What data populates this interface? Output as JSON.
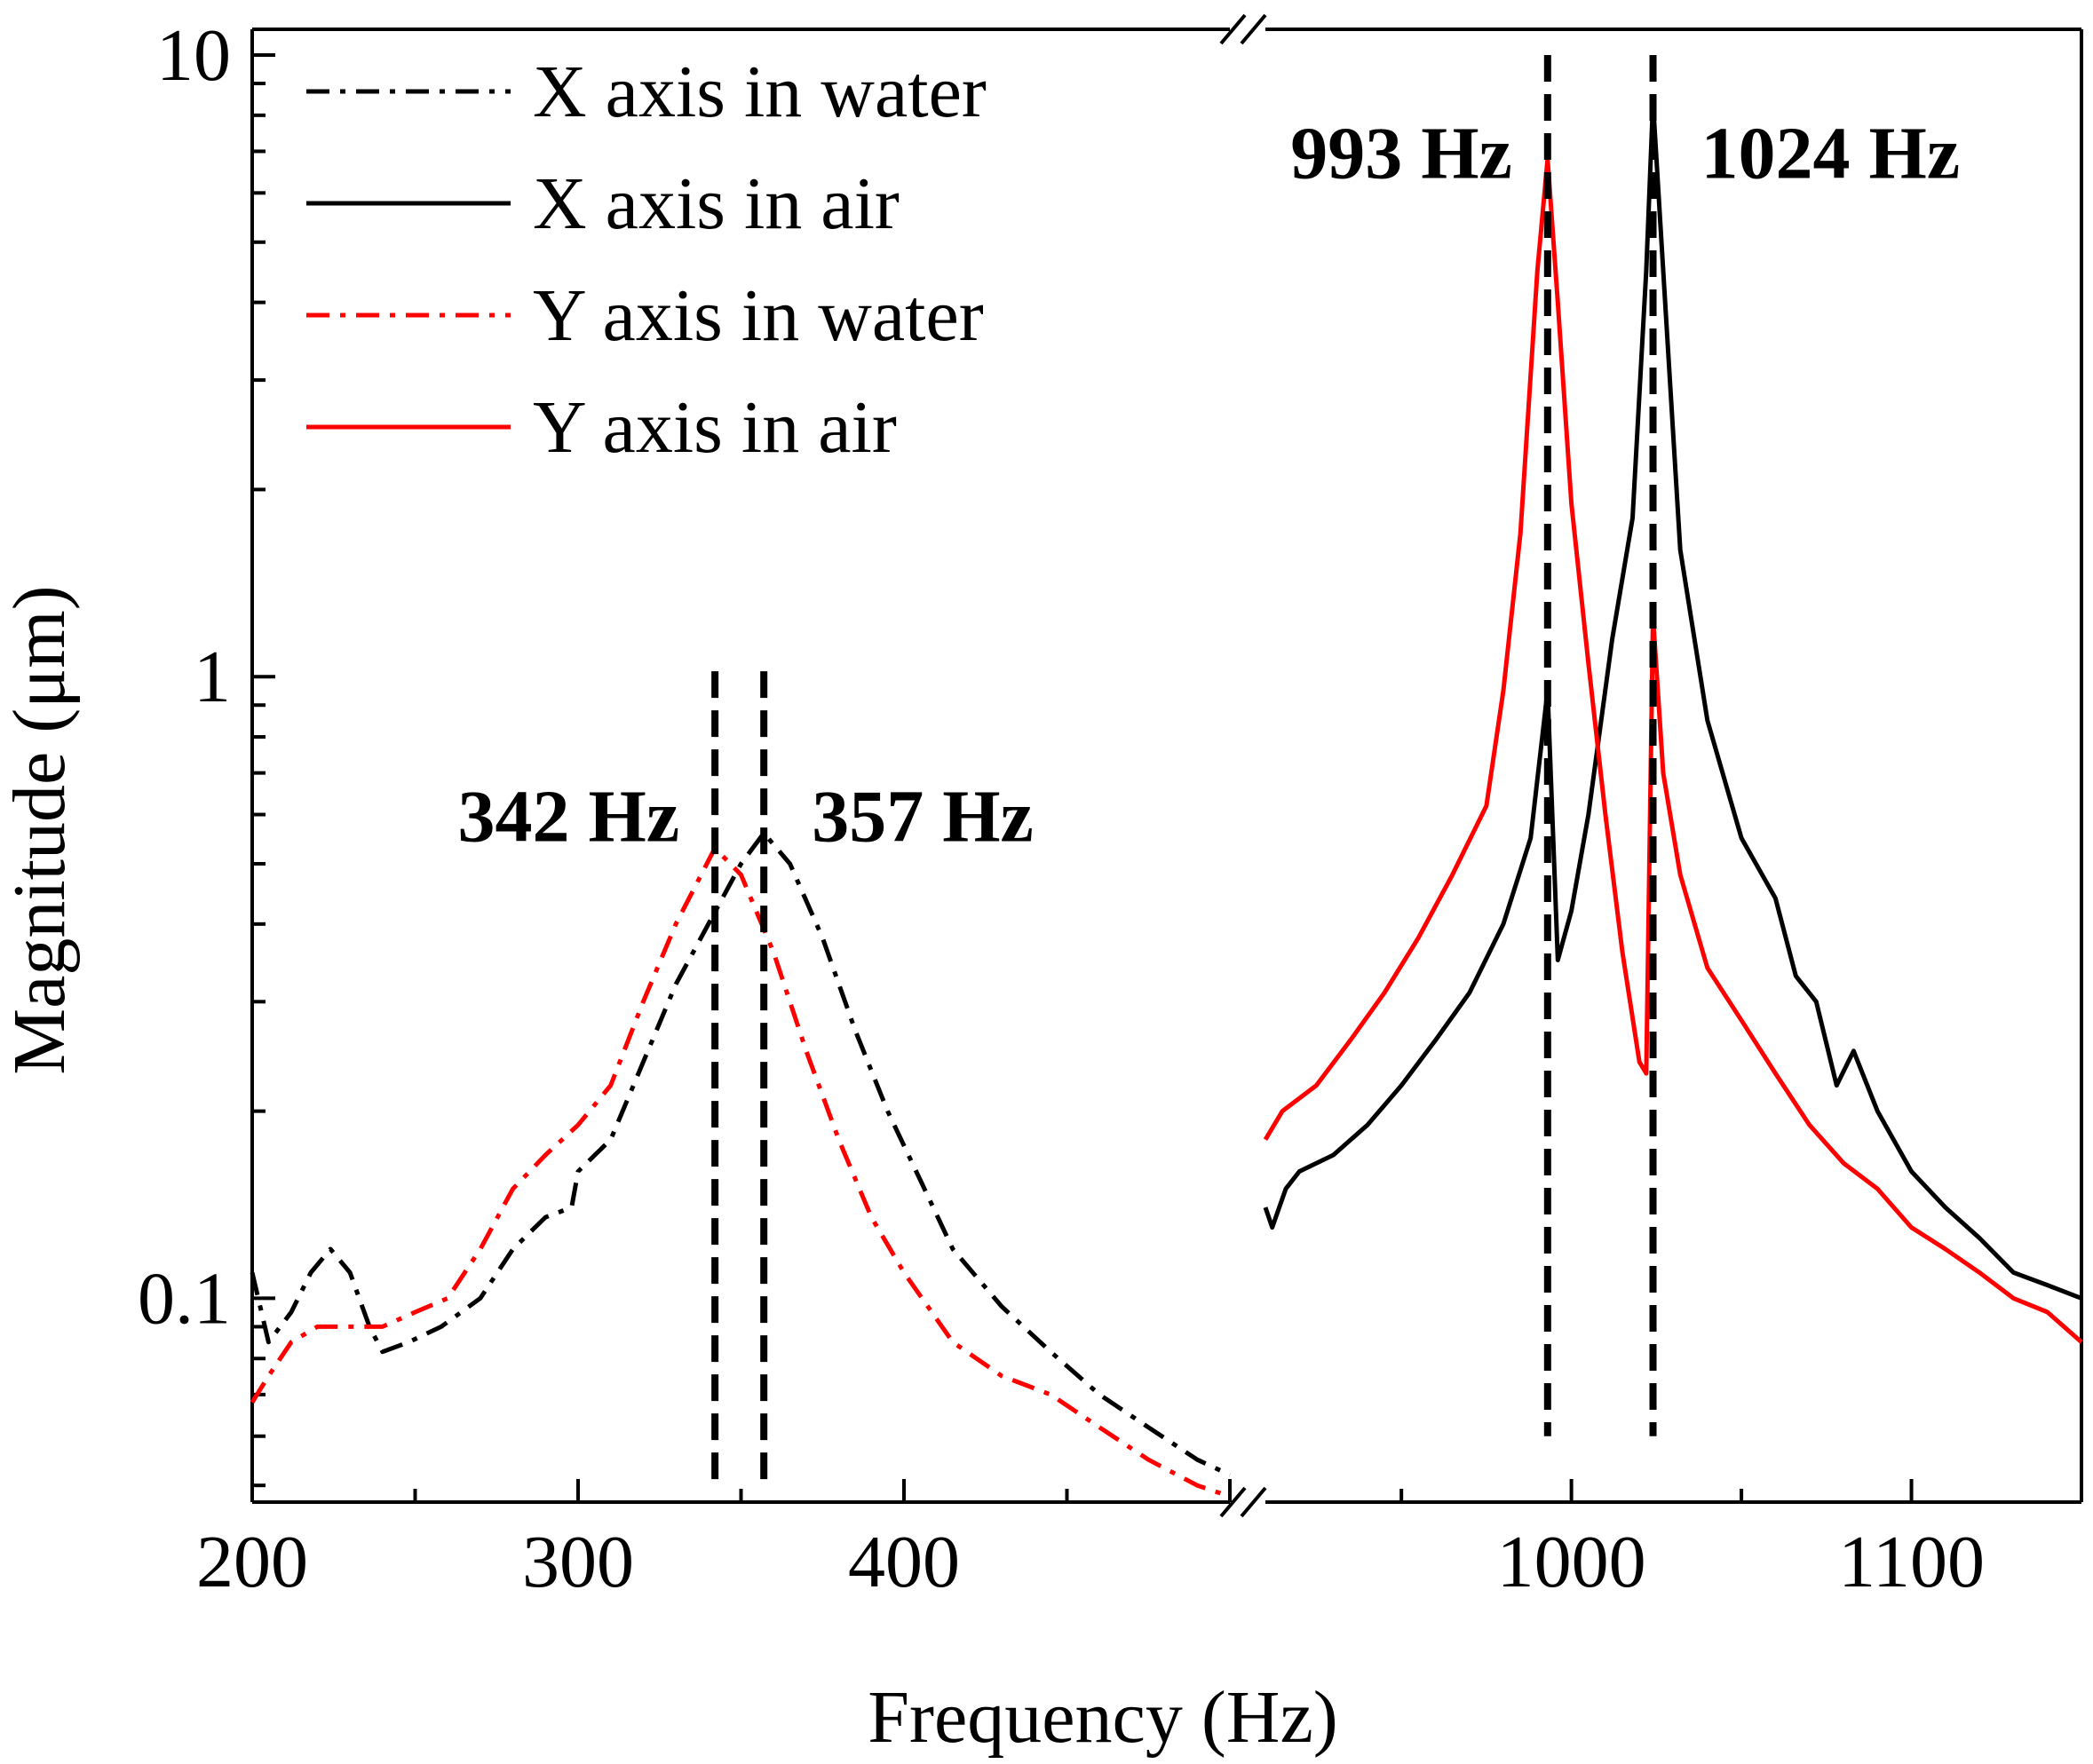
{
  "chart_data": {
    "type": "line",
    "title": "",
    "xlabel": "Frequency (Hz)",
    "ylabel": "Magnitude (μm)",
    "yscale": "log",
    "ylim": [
      0.047,
      11
    ],
    "grid": false,
    "legend_position": "top-left",
    "x_segments": [
      {
        "xlim": [
          200,
          500
        ],
        "ticks": [
          200,
          300,
          400
        ],
        "tick_labels": [
          "200",
          "300",
          "400"
        ]
      },
      {
        "xlim": [
          910,
          1150
        ],
        "ticks": [
          1000,
          1100
        ],
        "tick_labels": [
          "1000",
          "1100"
        ]
      }
    ],
    "y_ticks": [
      0.1,
      1,
      10
    ],
    "y_tick_labels": [
      "0.1",
      "1",
      "10"
    ],
    "series": [
      {
        "name": "X axis in water",
        "color": "#000000",
        "style": "dashdot",
        "segment": 0,
        "points": [
          [
            200,
            0.11
          ],
          [
            205,
            0.085
          ],
          [
            212,
            0.095
          ],
          [
            218,
            0.11
          ],
          [
            224,
            0.12
          ],
          [
            230,
            0.11
          ],
          [
            236,
            0.09
          ],
          [
            240,
            0.082
          ],
          [
            248,
            0.085
          ],
          [
            258,
            0.09
          ],
          [
            270,
            0.1
          ],
          [
            280,
            0.12
          ],
          [
            290,
            0.135
          ],
          [
            298,
            0.14
          ],
          [
            300,
            0.16
          ],
          [
            310,
            0.18
          ],
          [
            320,
            0.24
          ],
          [
            330,
            0.32
          ],
          [
            340,
            0.4
          ],
          [
            350,
            0.5
          ],
          [
            357,
            0.56
          ],
          [
            365,
            0.5
          ],
          [
            375,
            0.38
          ],
          [
            385,
            0.27
          ],
          [
            395,
            0.2
          ],
          [
            405,
            0.155
          ],
          [
            415,
            0.12
          ],
          [
            430,
            0.097
          ],
          [
            445,
            0.082
          ],
          [
            460,
            0.07
          ],
          [
            475,
            0.062
          ],
          [
            490,
            0.055
          ],
          [
            500,
            0.052
          ]
        ]
      },
      {
        "name": "X axis in air",
        "color": "#000000",
        "style": "solid",
        "segment": 1,
        "points": [
          [
            910,
            0.14
          ],
          [
            912,
            0.13
          ],
          [
            916,
            0.15
          ],
          [
            920,
            0.16
          ],
          [
            930,
            0.17
          ],
          [
            940,
            0.19
          ],
          [
            950,
            0.22
          ],
          [
            960,
            0.26
          ],
          [
            970,
            0.31
          ],
          [
            980,
            0.4
          ],
          [
            988,
            0.55
          ],
          [
            993,
            0.95
          ],
          [
            996,
            0.35
          ],
          [
            1000,
            0.42
          ],
          [
            1005,
            0.6
          ],
          [
            1012,
            1.15
          ],
          [
            1018,
            1.8
          ],
          [
            1022,
            4.5
          ],
          [
            1024,
            8.4
          ],
          [
            1027,
            4.5
          ],
          [
            1032,
            1.6
          ],
          [
            1040,
            0.85
          ],
          [
            1050,
            0.55
          ],
          [
            1060,
            0.44
          ],
          [
            1066,
            0.33
          ],
          [
            1072,
            0.3
          ],
          [
            1078,
            0.22
          ],
          [
            1083,
            0.25
          ],
          [
            1090,
            0.2
          ],
          [
            1100,
            0.16
          ],
          [
            1110,
            0.14
          ],
          [
            1120,
            0.125
          ],
          [
            1130,
            0.11
          ],
          [
            1140,
            0.105
          ],
          [
            1150,
            0.1
          ]
        ]
      },
      {
        "name": "Y axis in water",
        "color": "#ff0000",
        "style": "dashdot",
        "segment": 0,
        "points": [
          [
            200,
            0.068
          ],
          [
            205,
            0.075
          ],
          [
            212,
            0.085
          ],
          [
            220,
            0.09
          ],
          [
            230,
            0.09
          ],
          [
            240,
            0.09
          ],
          [
            250,
            0.095
          ],
          [
            260,
            0.1
          ],
          [
            270,
            0.12
          ],
          [
            280,
            0.15
          ],
          [
            290,
            0.17
          ],
          [
            300,
            0.19
          ],
          [
            310,
            0.22
          ],
          [
            320,
            0.3
          ],
          [
            330,
            0.4
          ],
          [
            342,
            0.53
          ],
          [
            350,
            0.48
          ],
          [
            360,
            0.36
          ],
          [
            370,
            0.25
          ],
          [
            380,
            0.18
          ],
          [
            390,
            0.135
          ],
          [
            400,
            0.11
          ],
          [
            415,
            0.085
          ],
          [
            430,
            0.075
          ],
          [
            445,
            0.07
          ],
          [
            460,
            0.062
          ],
          [
            475,
            0.055
          ],
          [
            490,
            0.05
          ],
          [
            500,
            0.048
          ]
        ]
      },
      {
        "name": "Y axis in air",
        "color": "#ff0000",
        "style": "solid",
        "segment": 1,
        "points": [
          [
            910,
            0.18
          ],
          [
            915,
            0.2
          ],
          [
            925,
            0.22
          ],
          [
            935,
            0.26
          ],
          [
            945,
            0.31
          ],
          [
            955,
            0.38
          ],
          [
            965,
            0.48
          ],
          [
            975,
            0.62
          ],
          [
            980,
            0.95
          ],
          [
            985,
            1.7
          ],
          [
            990,
            4.5
          ],
          [
            993,
            6.8
          ],
          [
            996,
            4.0
          ],
          [
            1000,
            1.9
          ],
          [
            1005,
            1.05
          ],
          [
            1010,
            0.6
          ],
          [
            1015,
            0.36
          ],
          [
            1020,
            0.24
          ],
          [
            1022,
            0.23
          ],
          [
            1024,
            1.25
          ],
          [
            1027,
            0.7
          ],
          [
            1032,
            0.48
          ],
          [
            1040,
            0.34
          ],
          [
            1050,
            0.28
          ],
          [
            1060,
            0.23
          ],
          [
            1070,
            0.19
          ],
          [
            1080,
            0.165
          ],
          [
            1090,
            0.15
          ],
          [
            1100,
            0.13
          ],
          [
            1110,
            0.12
          ],
          [
            1120,
            0.11
          ],
          [
            1130,
            0.1
          ],
          [
            1140,
            0.095
          ],
          [
            1150,
            0.085
          ]
        ]
      }
    ],
    "annotations": [
      {
        "text": "342 Hz",
        "x": 342,
        "segment": 0,
        "side": "left",
        "y": 0.6
      },
      {
        "text": "357 Hz",
        "x": 357,
        "segment": 0,
        "side": "right",
        "y": 0.6
      },
      {
        "text": "993 Hz",
        "x": 993,
        "segment": 1,
        "side": "left",
        "y": 7.0
      },
      {
        "text": "1024 Hz",
        "x": 1024,
        "segment": 1,
        "side": "right",
        "y": 7.0
      }
    ],
    "vlines": [
      {
        "x": 342,
        "segment": 0,
        "y_top": 1.02,
        "y_bottom": 0.05
      },
      {
        "x": 357,
        "segment": 0,
        "y_top": 1.02,
        "y_bottom": 0.05
      },
      {
        "x": 993,
        "segment": 1,
        "y_top": 10.0,
        "y_bottom": 0.06
      },
      {
        "x": 1024,
        "segment": 1,
        "y_top": 10.0,
        "y_bottom": 0.06
      }
    ]
  }
}
